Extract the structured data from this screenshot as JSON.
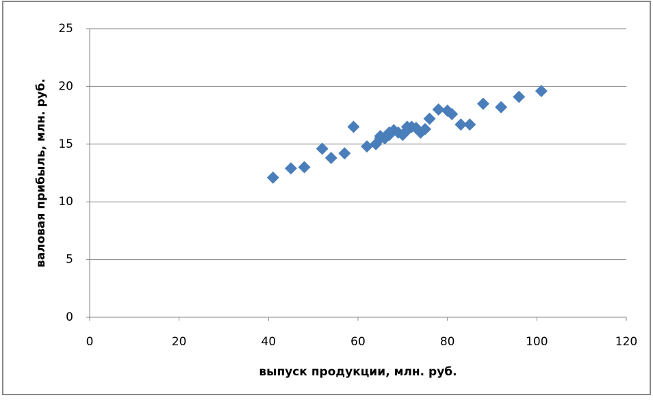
{
  "chart_data": {
    "type": "scatter",
    "x_label": "выпуск продукции, млн. руб.",
    "y_label": "валовая прибыль, млн. руб.",
    "color": "#4a7ebb",
    "grid": true,
    "xlim": [
      0,
      120
    ],
    "xticks": [
      0,
      20,
      40,
      60,
      80,
      100,
      120
    ],
    "ylim": [
      0,
      25
    ],
    "yticks": [
      0,
      5,
      10,
      15,
      20,
      25
    ],
    "x": [
      41,
      45,
      48,
      52,
      54,
      57,
      59,
      62,
      64,
      65,
      65,
      66,
      67,
      67,
      68,
      69,
      70,
      71,
      71,
      72,
      73,
      74,
      75,
      76,
      78,
      80,
      81,
      83,
      85,
      88,
      92,
      96,
      101
    ],
    "y": [
      12.1,
      12.9,
      13,
      14.6,
      13.8,
      14.2,
      16.5,
      14.8,
      15,
      15.5,
      15.7,
      15.5,
      15.8,
      16,
      16.2,
      16,
      15.8,
      16.2,
      16.5,
      16.5,
      16.4,
      16,
      16.3,
      17.2,
      18,
      17.9,
      17.6,
      16.7,
      16.7,
      18.5,
      18.2,
      19.1,
      19.6
    ]
  }
}
